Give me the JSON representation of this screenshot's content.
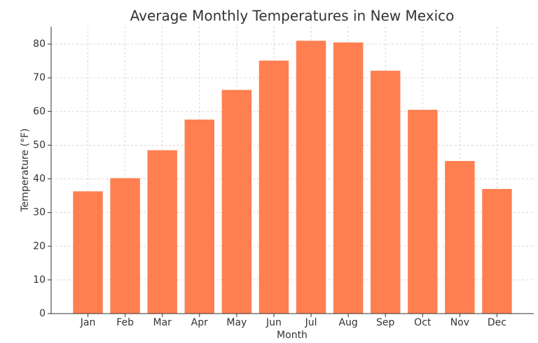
{
  "chart_data": {
    "type": "bar",
    "title": "Average Monthly Temperatures in New Mexico",
    "x_label": "Month",
    "y_label": "Temperature (°F)",
    "categories": [
      "Jan",
      "Feb",
      "Mar",
      "Apr",
      "May",
      "Jun",
      "Jul",
      "Aug",
      "Sep",
      "Oct",
      "Nov",
      "Dec"
    ],
    "values": [
      36.3,
      40.2,
      48.5,
      57.6,
      66.4,
      75.1,
      81.0,
      80.5,
      72.1,
      60.5,
      45.3,
      37.0
    ],
    "color": "#ff7f50",
    "ylim": [
      0,
      85.2
    ],
    "yticks": [
      0,
      10,
      20,
      30,
      40,
      50,
      60,
      70,
      80
    ],
    "grid": true
  }
}
